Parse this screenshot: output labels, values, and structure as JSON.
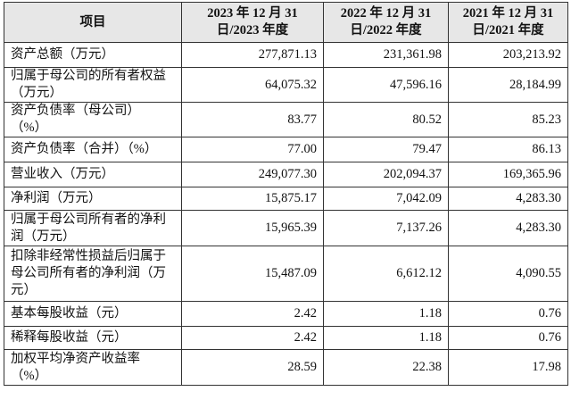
{
  "table": {
    "header": [
      [
        "项目"
      ],
      [
        "2023 年 12 月 31",
        "日/2023 年度"
      ],
      [
        "2022 年 12 月 31",
        "日/2022 年度"
      ],
      [
        "2021 年 12 月 31",
        "日/2021 年度"
      ]
    ],
    "rows": [
      {
        "label": [
          "资产总额（万元）"
        ],
        "values": [
          "277,871.13",
          "231,361.98",
          "203,213.92"
        ]
      },
      {
        "label": [
          "归属于母公司的所有者权益",
          "（万元）"
        ],
        "values": [
          "64,075.32",
          "47,596.16",
          "28,184.99"
        ]
      },
      {
        "label": [
          "资产负债率（母公司）",
          "（%）"
        ],
        "values": [
          "83.77",
          "80.52",
          "85.23"
        ]
      },
      {
        "label": [
          "资产负债率（合并）（%）"
        ],
        "values": [
          "77.00",
          "79.47",
          "86.13"
        ]
      },
      {
        "label": [
          "营业收入（万元）"
        ],
        "values": [
          "249,077.30",
          "202,094.37",
          "169,365.96"
        ]
      },
      {
        "label": [
          "净利润（万元）"
        ],
        "values": [
          "15,875.17",
          "7,042.09",
          "4,283.30"
        ]
      },
      {
        "label": [
          "归属于母公司所有者的净利",
          "润（万元）"
        ],
        "values": [
          "15,965.39",
          "7,137.26",
          "4,283.30"
        ]
      },
      {
        "label": [
          "扣除非经常性损益后归属于",
          "母公司所有者的净利润（万",
          "元）"
        ],
        "values": [
          "15,487.09",
          "6,612.12",
          "4,090.55"
        ]
      },
      {
        "label": [
          "基本每股收益（元）"
        ],
        "values": [
          "2.42",
          "1.18",
          "0.76"
        ]
      },
      {
        "label": [
          "稀释每股收益（元）"
        ],
        "values": [
          "2.42",
          "1.18",
          "0.76"
        ]
      },
      {
        "label": [
          "加权平均净资产收益率",
          "（%）"
        ],
        "values": [
          "28.59",
          "22.38",
          "17.98"
        ]
      }
    ]
  }
}
